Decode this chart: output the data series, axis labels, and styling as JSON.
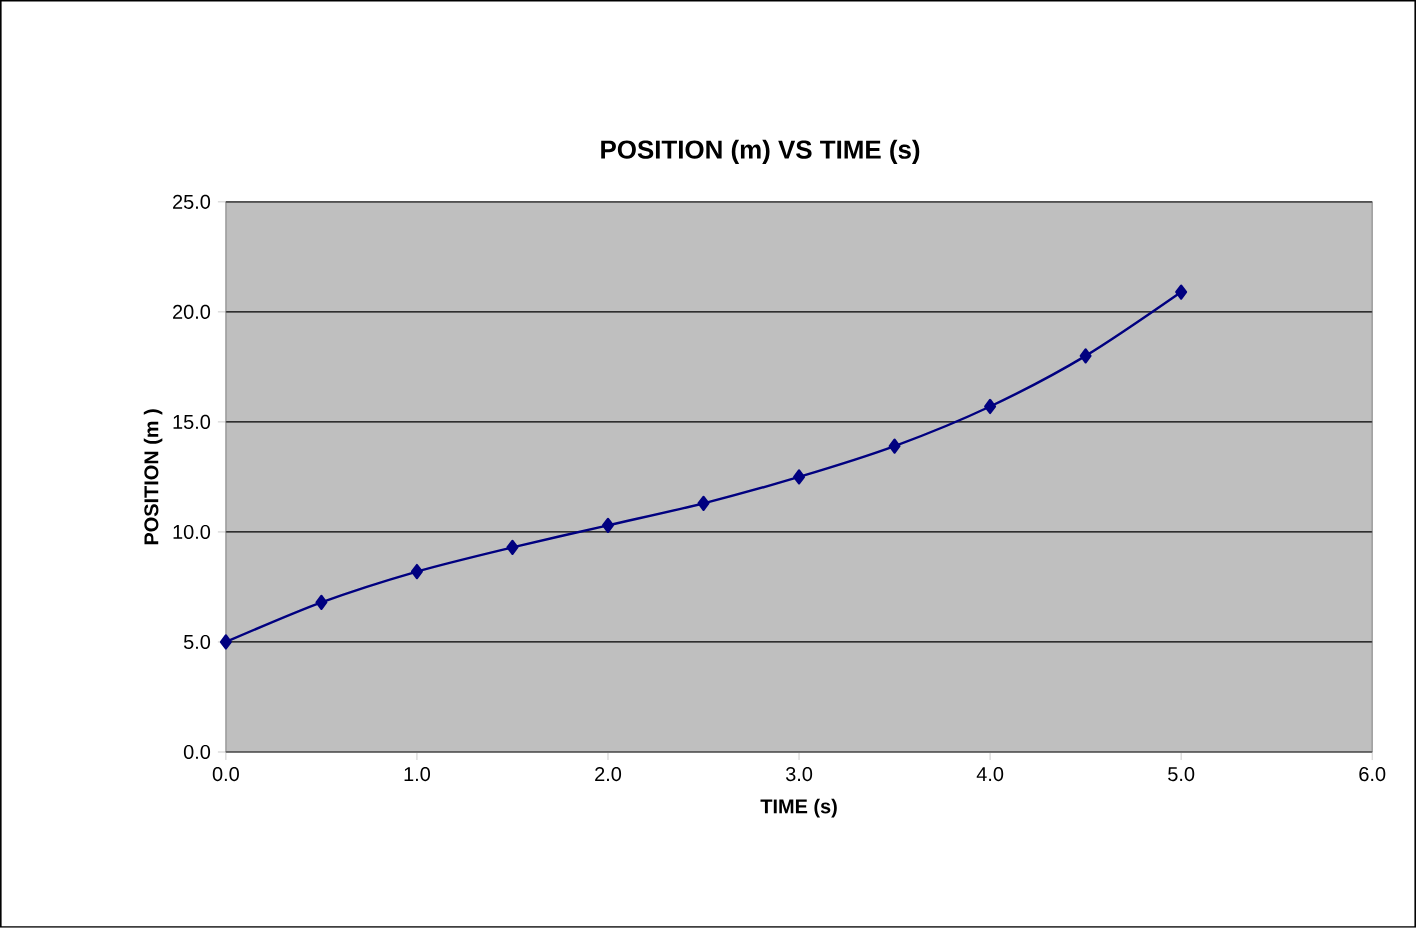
{
  "chart_data": {
    "type": "line",
    "title": "POSITION (m) VS TIME (s)",
    "xlabel": "TIME (s)",
    "ylabel": "POSITION (m )",
    "x": [
      0,
      0.5,
      1.0,
      1.5,
      2.0,
      2.5,
      3.0,
      3.5,
      4.0,
      4.5,
      5.0
    ],
    "series": [
      {
        "color": "#000080",
        "values": [
          5.0,
          6.8,
          8.2,
          9.3,
          10.3,
          11.3,
          12.5,
          13.9,
          15.7,
          18.0,
          20.9
        ]
      }
    ],
    "xlim": [
      0,
      6
    ],
    "ylim": [
      0,
      25
    ],
    "xticks": [
      {
        "value": 0,
        "label": "0.0"
      },
      {
        "value": 1,
        "label": "1.0"
      },
      {
        "value": 2,
        "label": "2.0"
      },
      {
        "value": 3,
        "label": "3.0"
      },
      {
        "value": 4,
        "label": "4.0"
      },
      {
        "value": 5,
        "label": "5.0"
      },
      {
        "value": 6,
        "label": "6.0"
      }
    ],
    "yticks": [
      {
        "value": 0,
        "label": "0.0"
      },
      {
        "value": 5,
        "label": "5.0"
      },
      {
        "value": 10,
        "label": "10.0"
      },
      {
        "value": 15,
        "label": "15.0"
      },
      {
        "value": 20,
        "label": "20.0"
      },
      {
        "value": 25,
        "label": "25.0"
      }
    ],
    "grid": "y",
    "marker": "diamond",
    "line_style": "solid"
  }
}
